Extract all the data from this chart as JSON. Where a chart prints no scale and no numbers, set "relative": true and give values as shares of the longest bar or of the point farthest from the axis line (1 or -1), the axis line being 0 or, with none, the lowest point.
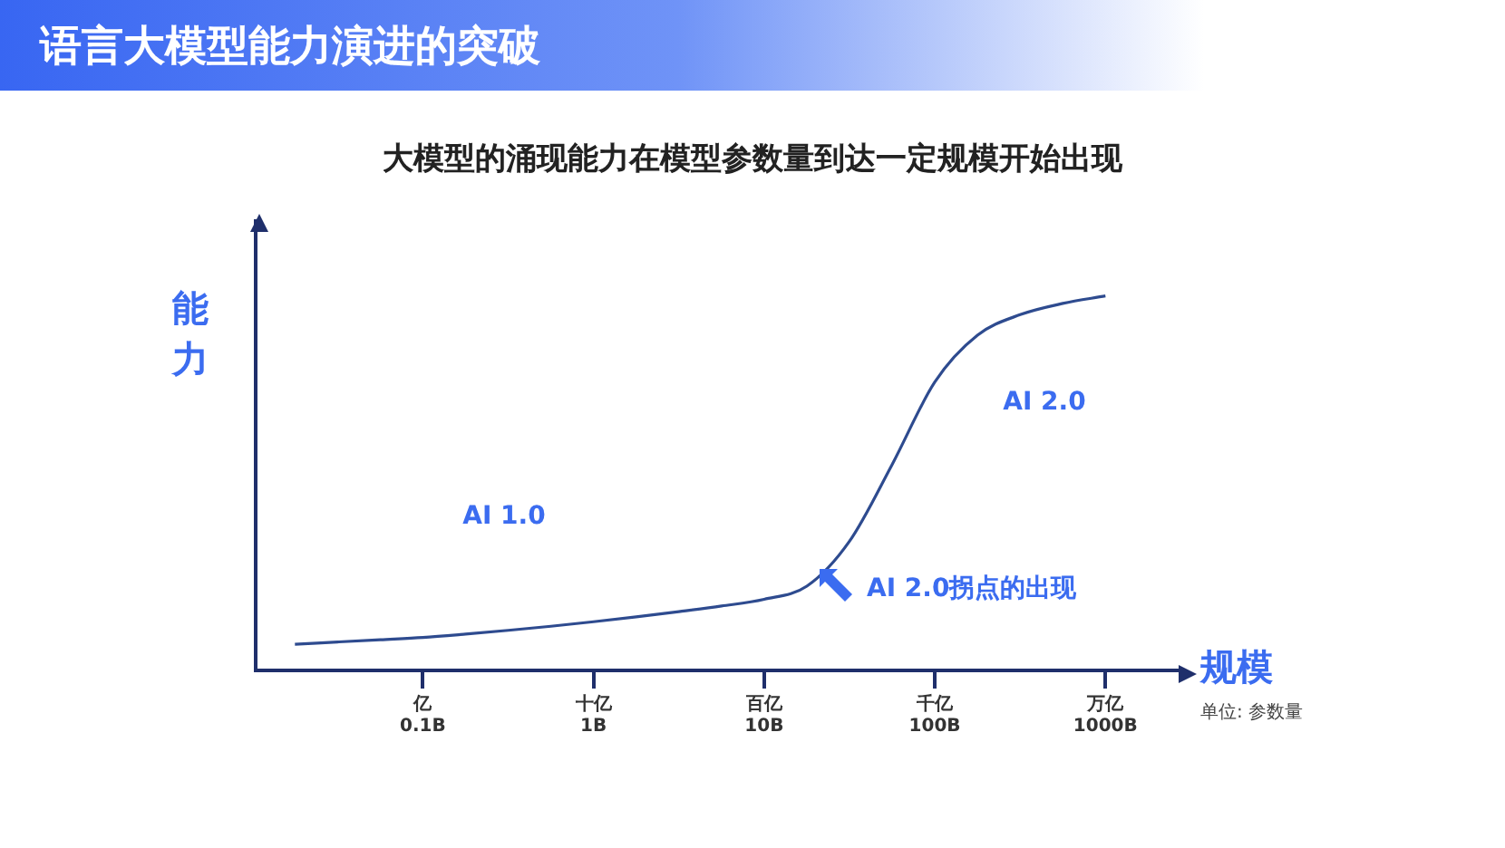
{
  "chart_data": {
    "type": "line",
    "title": "语言大模型能力演进的突破",
    "subtitle": "大模型的涌现能力在模型参数量到达一定规模开始出现",
    "xlabel": "规模",
    "ylabel": "能力",
    "relative": true,
    "categories": [
      null,
      null,
      null,
      "亿\n0.1B",
      null,
      null,
      null,
      "十亿\n1B",
      null,
      null,
      null,
      "百亿\n10B",
      null,
      null,
      null,
      "千亿\n100B",
      null,
      null,
      null,
      "万亿\n1000B"
    ],
    "series": [
      {
        "color": "#2e4b8f",
        "values": [
          0.07,
          0.076,
          0.082,
          0.088,
          0.097,
          0.107,
          0.118,
          0.13,
          0.143,
          0.157,
          0.172,
          0.19,
          0.225,
          0.345,
          0.55,
          0.77,
          0.895,
          0.95,
          0.98,
          1.0
        ]
      }
    ],
    "annotations": [
      "AI 1.0",
      "AI 2.0",
      "单位: 参数量",
      "AI 2.0拐点的出现"
    ],
    "grid": false,
    "legend": false,
    "marker": "none",
    "line_style": "solid"
  }
}
